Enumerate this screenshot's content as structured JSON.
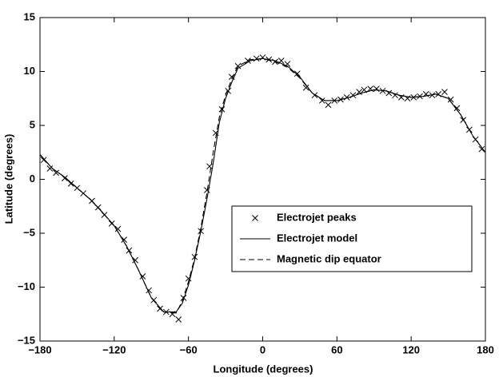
{
  "chart_data": {
    "type": "line",
    "xlabel": "Longitude (degrees)",
    "ylabel": "Latitude (degrees)",
    "xlim": [
      -180,
      180
    ],
    "ylim": [
      -15,
      15
    ],
    "xticks": [
      {
        "value": -180,
        "label": "−180"
      },
      {
        "value": -120,
        "label": "−120"
      },
      {
        "value": -60,
        "label": "−60"
      },
      0,
      60,
      120,
      180
    ],
    "yticks": [
      {
        "value": -15,
        "label": "−15"
      },
      {
        "value": -10,
        "label": "−10"
      },
      {
        "value": -5,
        "label": "−5"
      },
      0,
      5,
      10,
      15
    ],
    "grid": false,
    "legend": "center right",
    "series": [
      {
        "name": "Electrojet peaks",
        "color": "#000000",
        "style": "marker",
        "x": [
          -177,
          -172,
          -167,
          -160,
          -155,
          -150,
          -145,
          -138,
          -133,
          -128,
          -122,
          -117,
          -112,
          -108,
          -103,
          -97,
          -92,
          -88,
          -83,
          -78,
          -73,
          -68,
          -64,
          -60,
          -55,
          -50,
          -45,
          -43,
          -38,
          -33,
          -28,
          -25,
          -20,
          -12,
          -5,
          0,
          5,
          10,
          15,
          20,
          28,
          35,
          42,
          48,
          53,
          58,
          63,
          68,
          73,
          78,
          82,
          87,
          92,
          97,
          102,
          107,
          112,
          117,
          122,
          127,
          132,
          137,
          142,
          147,
          152,
          157,
          162,
          167,
          172,
          177
        ],
        "values": [
          1.8,
          1.0,
          0.6,
          0.1,
          -0.4,
          -0.8,
          -1.3,
          -2.0,
          -2.6,
          -3.3,
          -4.1,
          -4.6,
          -5.6,
          -6.6,
          -7.5,
          -9.0,
          -10.3,
          -11.2,
          -12.0,
          -12.3,
          -12.5,
          -13.0,
          -11.0,
          -9.2,
          -7.2,
          -4.8,
          -1.0,
          1.2,
          4.3,
          6.5,
          8.2,
          9.5,
          10.5,
          11.0,
          11.2,
          11.3,
          11.1,
          10.9,
          11.0,
          10.7,
          9.8,
          8.5,
          7.8,
          7.3,
          6.9,
          7.3,
          7.4,
          7.6,
          7.8,
          8.1,
          8.3,
          8.4,
          8.4,
          8.2,
          8.0,
          7.8,
          7.6,
          7.5,
          7.6,
          7.7,
          7.9,
          7.8,
          7.9,
          8.1,
          7.4,
          6.6,
          5.5,
          4.6,
          3.7,
          2.8
        ]
      },
      {
        "name": "Electrojet model",
        "color": "#000000",
        "style": "solid",
        "x": [
          -180,
          -170,
          -160,
          -150,
          -140,
          -130,
          -120,
          -110,
          -100,
          -90,
          -80,
          -70,
          -65,
          -60,
          -55,
          -50,
          -45,
          -40,
          -35,
          -30,
          -25,
          -20,
          -10,
          0,
          10,
          20,
          30,
          40,
          50,
          60,
          70,
          80,
          90,
          100,
          110,
          120,
          130,
          140,
          150,
          160,
          170,
          180
        ],
        "values": [
          2.3,
          1.0,
          0.2,
          -0.8,
          -1.8,
          -3.0,
          -4.3,
          -6.2,
          -8.5,
          -11.0,
          -12.3,
          -12.3,
          -11.5,
          -9.8,
          -7.5,
          -4.8,
          -1.8,
          1.5,
          5.3,
          7.5,
          9.0,
          10.3,
          11.0,
          11.2,
          11.0,
          10.5,
          9.5,
          8.0,
          7.3,
          7.3,
          7.6,
          8.0,
          8.3,
          8.2,
          7.8,
          7.6,
          7.7,
          7.9,
          7.5,
          6.0,
          4.0,
          2.5
        ]
      },
      {
        "name": "Magnetic dip equator",
        "color": "#000000",
        "style": "dashed",
        "x": [
          -180,
          -170,
          -160,
          -150,
          -140,
          -130,
          -120,
          -110,
          -100,
          -90,
          -80,
          -70,
          -65,
          -60,
          -55,
          -50,
          -45,
          -40,
          -35,
          -30,
          -25,
          -20,
          -10,
          0,
          10,
          20,
          30,
          40,
          50,
          60,
          70,
          80,
          90,
          100,
          110,
          120,
          130,
          140,
          150,
          160,
          170,
          180
        ],
        "values": [
          2.3,
          1.0,
          0.2,
          -0.8,
          -1.8,
          -3.0,
          -4.3,
          -6.2,
          -8.5,
          -11.0,
          -12.3,
          -12.4,
          -11.3,
          -9.5,
          -7.3,
          -4.5,
          -1.2,
          2.5,
          5.8,
          7.8,
          9.3,
          10.5,
          11.1,
          11.2,
          10.9,
          10.4,
          9.4,
          8.0,
          7.3,
          7.3,
          7.6,
          8.0,
          8.3,
          8.2,
          7.8,
          7.6,
          7.7,
          7.9,
          7.5,
          6.0,
          4.0,
          2.5
        ]
      }
    ]
  }
}
